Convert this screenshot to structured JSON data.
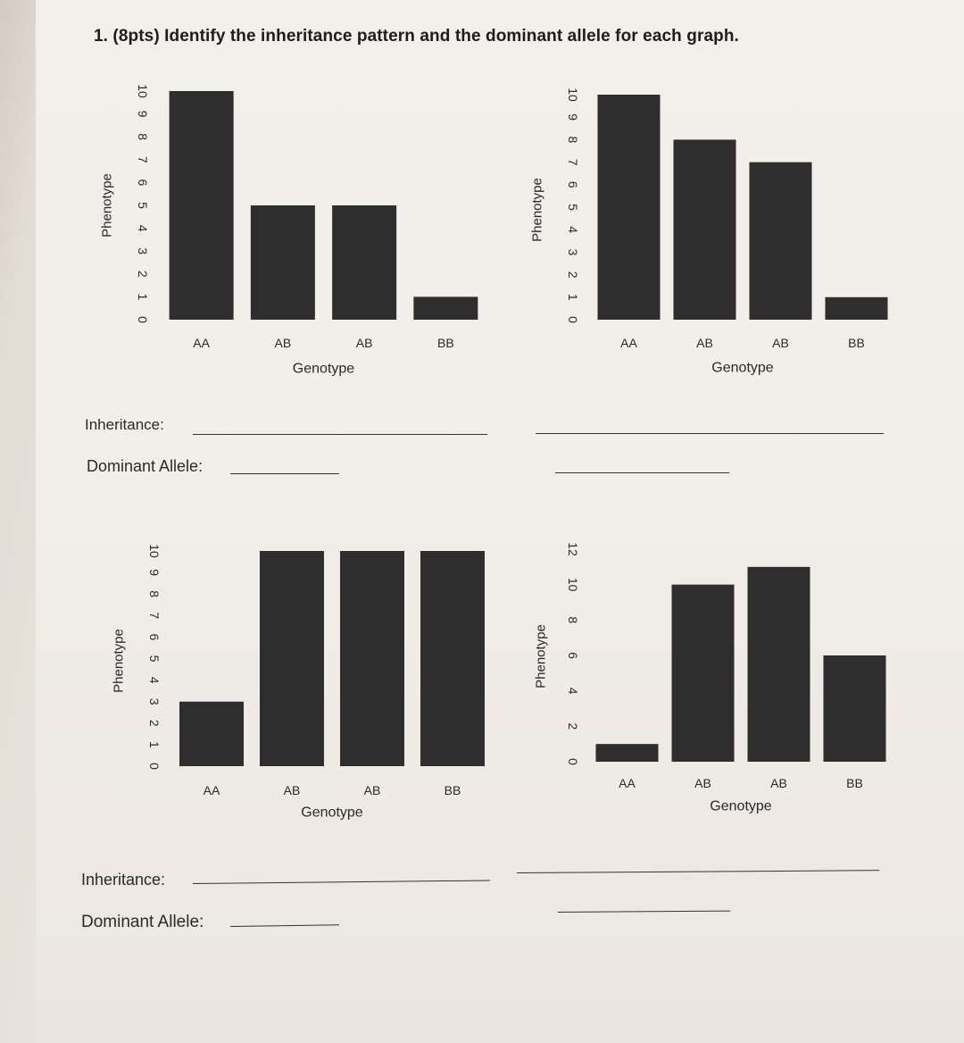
{
  "title": "1.  (8pts) Identify the inheritance pattern and the dominant allele for each graph.",
  "labels": {
    "inheritance": "Inheritance:",
    "dominant": "Dominant Allele:"
  },
  "colors": {
    "bar": "#2e2e2e",
    "text": "#2a2a2a"
  },
  "chart_data": [
    {
      "type": "bar",
      "categories": [
        "AA",
        "AB",
        "AB",
        "BB"
      ],
      "values": [
        10,
        5,
        5,
        1
      ],
      "xlabel": "Genotype",
      "ylabel": "Phenotype",
      "yticks": [
        0,
        1,
        2,
        3,
        4,
        5,
        6,
        7,
        8,
        9,
        10
      ],
      "ylim": [
        0,
        10
      ],
      "grid": false
    },
    {
      "type": "bar",
      "categories": [
        "AA",
        "AB",
        "AB",
        "BB"
      ],
      "values": [
        10,
        8,
        7,
        1
      ],
      "xlabel": "Genotype",
      "ylabel": "Phenotype",
      "yticks": [
        0,
        1,
        2,
        3,
        4,
        5,
        6,
        7,
        8,
        9,
        10
      ],
      "ylim": [
        0,
        10
      ],
      "grid": false
    },
    {
      "type": "bar",
      "categories": [
        "AA",
        "AB",
        "AB",
        "BB"
      ],
      "values": [
        3,
        10,
        10,
        10
      ],
      "xlabel": "Genotype",
      "ylabel": "Phenotype",
      "yticks": [
        0,
        1,
        2,
        3,
        4,
        5,
        6,
        7,
        8,
        9,
        10
      ],
      "ylim": [
        0,
        10
      ],
      "grid": false
    },
    {
      "type": "bar",
      "categories": [
        "AA",
        "AB",
        "AB",
        "BB"
      ],
      "values": [
        1,
        10,
        11,
        6
      ],
      "xlabel": "Genotype",
      "ylabel": "Phenotype",
      "yticks": [
        0,
        2,
        4,
        6,
        8,
        10,
        12
      ],
      "ylim": [
        0,
        12
      ],
      "grid": false
    }
  ]
}
